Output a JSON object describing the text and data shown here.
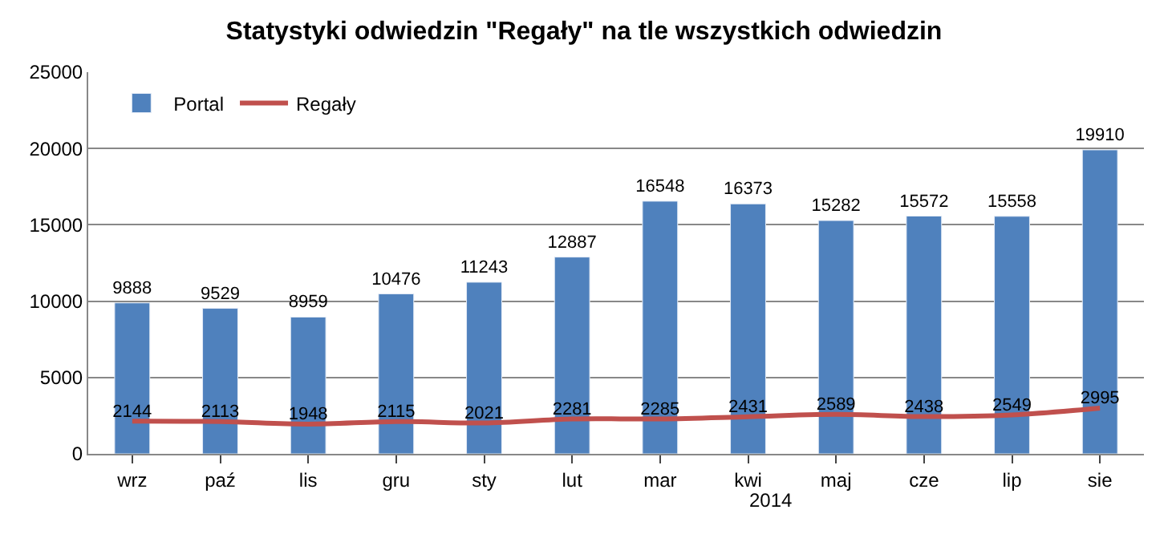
{
  "chart_data": {
    "type": "bar",
    "title": "Statystyki odwiedzin \"Regały\" na tle wszystkich odwiedzin",
    "categories": [
      "wrz",
      "paź",
      "lis",
      "gru",
      "sty",
      "lut",
      "mar",
      "kwi",
      "maj",
      "cze",
      "lip",
      "sie"
    ],
    "series": [
      {
        "name": "Portal",
        "color": "#4f81bd",
        "values": [
          9888,
          9529,
          8959,
          10476,
          11243,
          12887,
          16548,
          16373,
          15282,
          15572,
          15558,
          19910
        ]
      },
      {
        "name": "Regały",
        "type": "line",
        "color": "#c0504d",
        "values": [
          2144,
          2113,
          1948,
          2115,
          2021,
          2281,
          2285,
          2431,
          2589,
          2438,
          2549,
          2995
        ]
      }
    ],
    "ylim": [
      0,
      25000
    ],
    "yticks": [
      0,
      5000,
      10000,
      15000,
      20000,
      25000
    ],
    "grid": "y",
    "legend": "top left",
    "data_labels": true,
    "marker": "none",
    "annotations": [
      "2014"
    ]
  }
}
